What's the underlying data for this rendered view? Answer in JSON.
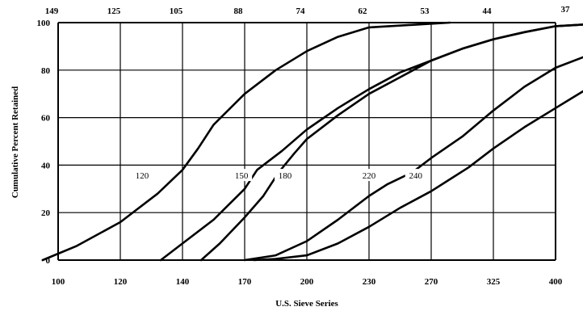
{
  "chart_data": {
    "type": "line",
    "xlabel": "U.S. Sieve Series",
    "ylabel": "Cumulative Percent Retained",
    "x_categories": [
      "100",
      "120",
      "140",
      "170",
      "200",
      "230",
      "270",
      "325",
      "400"
    ],
    "top_tick_labels": [
      "149",
      "125",
      "105",
      "88",
      "74",
      "62",
      "53",
      "44",
      "37"
    ],
    "y_ticks": [
      0,
      20,
      40,
      60,
      80,
      100
    ],
    "ylim": [
      0,
      100
    ],
    "grid": true,
    "series": [
      {
        "name": "120",
        "points": [
          [
            -0.25,
            0
          ],
          [
            0.3,
            6
          ],
          [
            1,
            16
          ],
          [
            1.6,
            28
          ],
          [
            2,
            38
          ],
          [
            2.25,
            47
          ],
          [
            2.5,
            57
          ],
          [
            3,
            70
          ],
          [
            3.5,
            80
          ],
          [
            4,
            88
          ],
          [
            4.5,
            94
          ],
          [
            5,
            98
          ],
          [
            6.3,
            100
          ]
        ]
      },
      {
        "name": "150",
        "points": [
          [
            1.65,
            0
          ],
          [
            2,
            7
          ],
          [
            2.5,
            17
          ],
          [
            3,
            30
          ],
          [
            3.2,
            38
          ],
          [
            3.6,
            46
          ],
          [
            4,
            55
          ],
          [
            4.5,
            64
          ],
          [
            5,
            72
          ],
          [
            5.5,
            79
          ],
          [
            6,
            84
          ],
          [
            6.5,
            89
          ],
          [
            7,
            93
          ],
          [
            7.5,
            96
          ],
          [
            8,
            98.5
          ],
          [
            9,
            100
          ]
        ]
      },
      {
        "name": "180",
        "points": [
          [
            2.3,
            0
          ],
          [
            2.6,
            7
          ],
          [
            3,
            18
          ],
          [
            3.3,
            27
          ],
          [
            3.55,
            37
          ],
          [
            3.8,
            45
          ],
          [
            4,
            51
          ],
          [
            4.5,
            61
          ],
          [
            5,
            70
          ],
          [
            5.5,
            77
          ],
          [
            6,
            84
          ],
          [
            6.5,
            89
          ],
          [
            7,
            93
          ],
          [
            7.5,
            96
          ],
          [
            8,
            98.5
          ],
          [
            9,
            100
          ]
        ]
      },
      {
        "name": "220",
        "points": [
          [
            3.0,
            0
          ],
          [
            3.5,
            2
          ],
          [
            4,
            8
          ],
          [
            4.5,
            17
          ],
          [
            5,
            27
          ],
          [
            5.3,
            32
          ],
          [
            5.7,
            37
          ],
          [
            6,
            43
          ],
          [
            6.5,
            52
          ],
          [
            7,
            63
          ],
          [
            7.5,
            73
          ],
          [
            8,
            81
          ],
          [
            8.5,
            86
          ],
          [
            9,
            90
          ]
        ]
      },
      {
        "name": "240",
        "points": [
          [
            3.15,
            0
          ],
          [
            3.5,
            0.5
          ],
          [
            4,
            2
          ],
          [
            4.5,
            7
          ],
          [
            5,
            14
          ],
          [
            5.5,
            22
          ],
          [
            6,
            29
          ],
          [
            6.3,
            34
          ],
          [
            6.6,
            39
          ],
          [
            7,
            47
          ],
          [
            7.5,
            56
          ],
          [
            8,
            64
          ],
          [
            8.5,
            72
          ],
          [
            9,
            79
          ]
        ]
      }
    ],
    "series_label_positions": [
      {
        "name": "120",
        "x": 1.35,
        "y": 35
      },
      {
        "name": "150",
        "x": 2.95,
        "y": 35
      },
      {
        "name": "180",
        "x": 3.65,
        "y": 35
      },
      {
        "name": "220",
        "x": 5.0,
        "y": 35
      },
      {
        "name": "240",
        "x": 5.75,
        "y": 35
      }
    ]
  }
}
